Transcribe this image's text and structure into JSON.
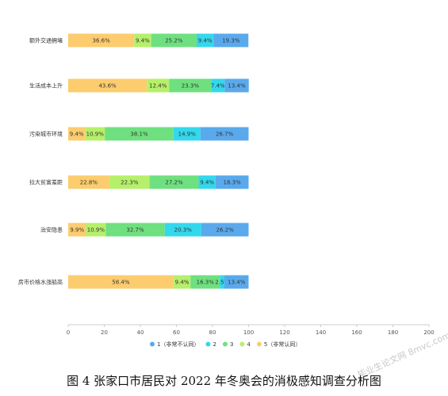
{
  "chart_data": {
    "type": "bar",
    "orientation": "horizontal",
    "stacked": true,
    "categories": [
      "额外交通拥堵",
      "生活成本上升",
      "污染城市环境",
      "拉大贫富差距",
      "治安隐患",
      "房市价格水涨船高"
    ],
    "series": [
      {
        "name": "5（非常认同）",
        "color": "#fccc6e",
        "values": [
          36.6,
          43.6,
          9.4,
          22.8,
          9.9,
          58.4
        ]
      },
      {
        "name": "4",
        "color": "#b6f06a",
        "values": [
          9.4,
          12.4,
          10.9,
          22.3,
          10.9,
          9.4
        ]
      },
      {
        "name": "3",
        "color": "#6fe07f",
        "values": [
          25.2,
          23.3,
          38.1,
          27.2,
          32.7,
          16.3
        ]
      },
      {
        "name": "2",
        "color": "#33d8ec",
        "values": [
          9.4,
          7.4,
          14.9,
          9.4,
          20.3,
          2.5
        ]
      },
      {
        "name": "1（非常不认同）",
        "color": "#5aa9ec",
        "values": [
          19.3,
          13.4,
          26.7,
          18.3,
          26.2,
          13.4
        ]
      }
    ],
    "value_labels": [
      [
        "36.6%",
        "43.6%",
        "9.4%",
        "22.8%",
        "9.9%",
        "58.4%"
      ],
      [
        "9.4%",
        "12.4%",
        "10.9%",
        "22.3%",
        "10.9%",
        "9.4%"
      ],
      [
        "25.2%",
        "23.3%",
        "38.1%",
        "27.2%",
        "32.7%",
        "16.3%"
      ],
      [
        "9.4%",
        "7.4%",
        "14.9%",
        "9.4%",
        "20.3%",
        "2.5%"
      ],
      [
        "19.3%",
        "13.4%",
        "26.7%",
        "18.3%",
        "26.2%",
        "13.4%"
      ]
    ],
    "xticks": [
      "0",
      "20",
      "40",
      "60",
      "80",
      "100",
      "120",
      "140",
      "160",
      "180",
      "200"
    ],
    "xlim": [
      0,
      200
    ],
    "legend_order": [
      4,
      3,
      2,
      1,
      0
    ],
    "legend_position": "bottom",
    "grid": false
  },
  "caption": "图 4  张家口市居民对 2022 年冬奥会的消极感知调查分析图",
  "watermark": "毕业生论文网 8mvc.com"
}
